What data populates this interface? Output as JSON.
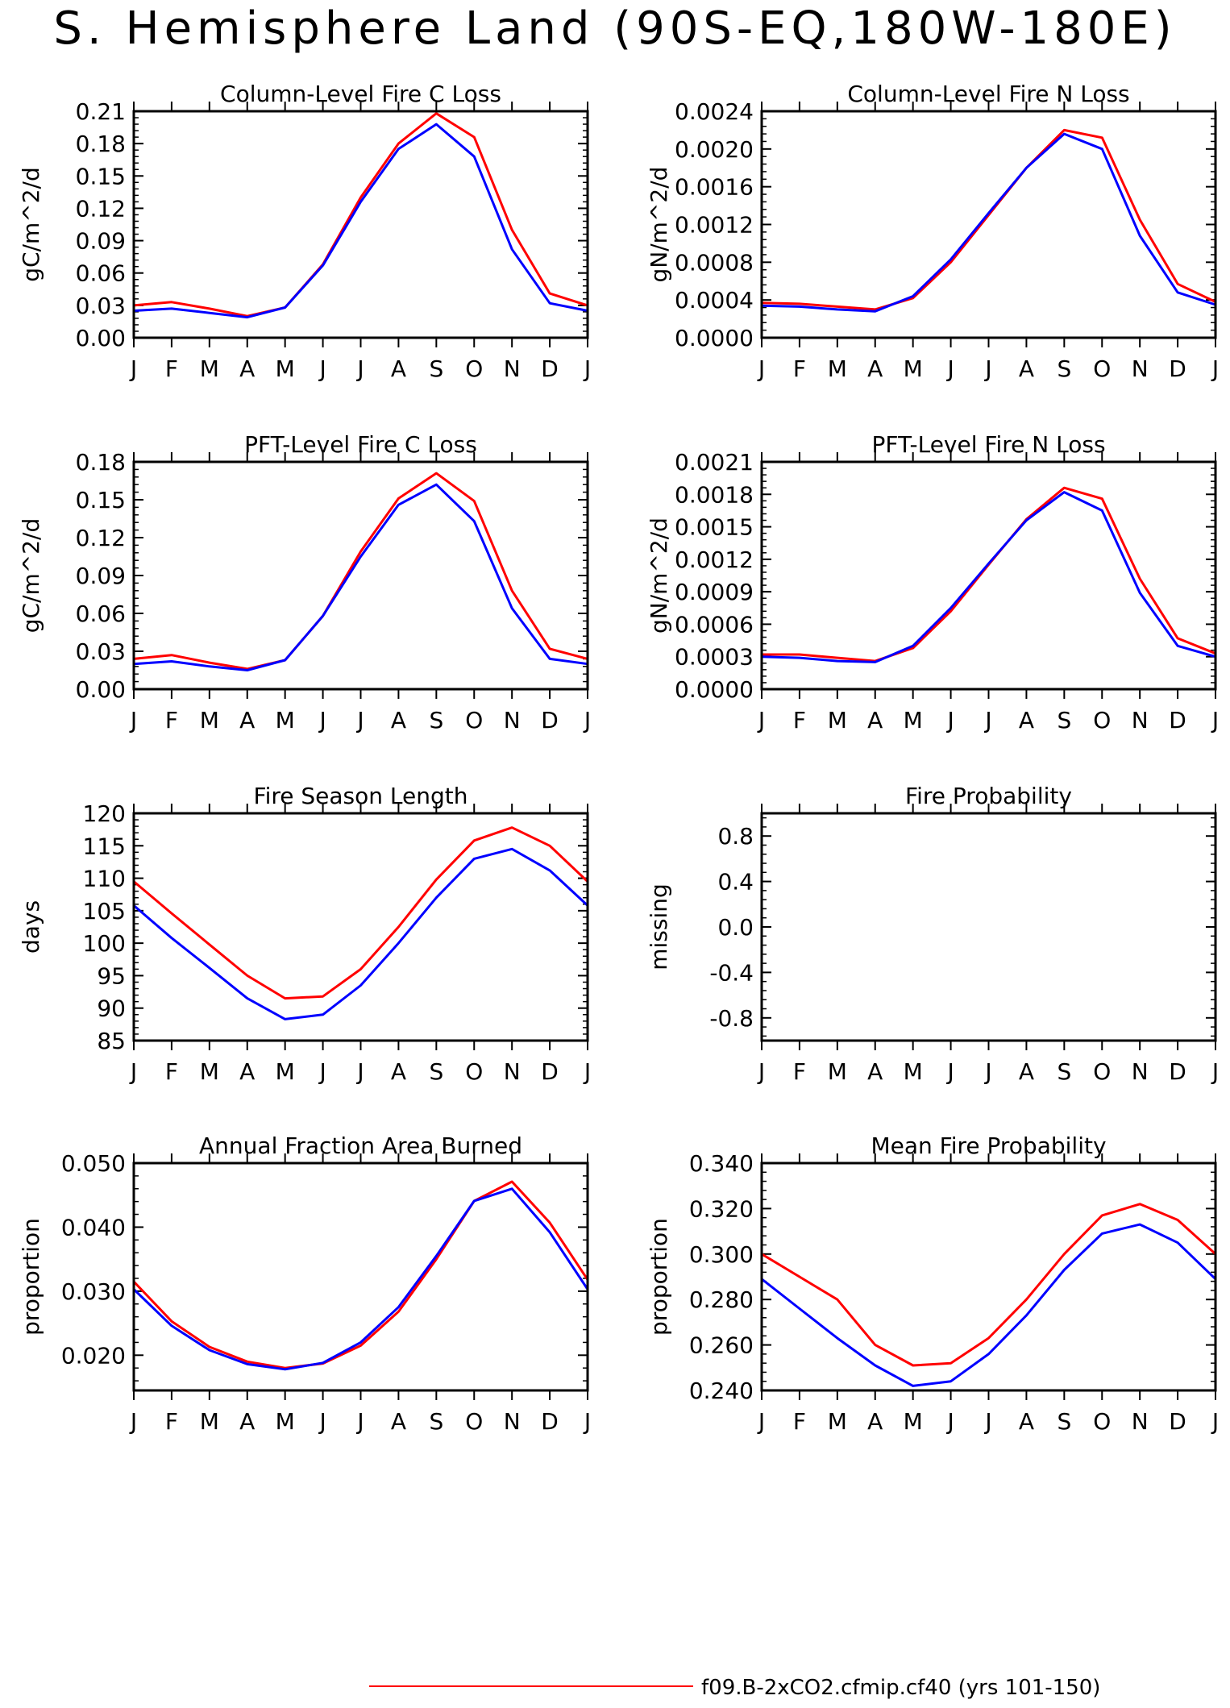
{
  "title": "S. Hemisphere Land (90S-EQ,180W-180E)",
  "months": [
    "J",
    "F",
    "M",
    "A",
    "M",
    "J",
    "J",
    "A",
    "S",
    "O",
    "N",
    "D",
    "J"
  ],
  "legend": {
    "entries": [
      {
        "label": "f09.B-2xCO2.cfmip.cf40 (yrs 101-150)",
        "color": "#ff0000"
      }
    ]
  },
  "chart_data": [
    {
      "type": "line",
      "title": "Column-Level Fire C Loss",
      "ylabel": "gC/m^2/d",
      "ylim": [
        0,
        0.21
      ],
      "yticks": [
        "0.00",
        "0.03",
        "0.06",
        "0.09",
        "0.12",
        "0.15",
        "0.18",
        "0.21"
      ],
      "series": [
        {
          "color": "#ff0000",
          "values": [
            0.03,
            0.033,
            0.027,
            0.02,
            0.028,
            0.068,
            0.13,
            0.18,
            0.208,
            0.186,
            0.1,
            0.041,
            0.03
          ]
        },
        {
          "color": "#0000ff",
          "values": [
            0.025,
            0.027,
            0.023,
            0.019,
            0.028,
            0.067,
            0.126,
            0.175,
            0.198,
            0.168,
            0.082,
            0.032,
            0.025
          ]
        }
      ]
    },
    {
      "type": "line",
      "title": "Column-Level Fire N Loss",
      "ylabel": "gN/m^2/d",
      "ylim": [
        0,
        0.0024
      ],
      "yticks": [
        "0.0000",
        "0.0004",
        "0.0008",
        "0.0012",
        "0.0016",
        "0.0020",
        "0.0024"
      ],
      "series": [
        {
          "color": "#ff0000",
          "values": [
            0.00037,
            0.00036,
            0.00033,
            0.0003,
            0.00042,
            0.0008,
            0.0013,
            0.0018,
            0.0022,
            0.00212,
            0.00125,
            0.00057,
            0.00038
          ]
        },
        {
          "color": "#0000ff",
          "values": [
            0.00034,
            0.00033,
            0.0003,
            0.00028,
            0.00044,
            0.00083,
            0.00132,
            0.0018,
            0.00216,
            0.002,
            0.00108,
            0.00048,
            0.00035
          ]
        }
      ]
    },
    {
      "type": "line",
      "title": "PFT-Level Fire C Loss",
      "ylabel": "gC/m^2/d",
      "ylim": [
        0,
        0.18
      ],
      "yticks": [
        "0.00",
        "0.03",
        "0.06",
        "0.09",
        "0.12",
        "0.15",
        "0.18"
      ],
      "series": [
        {
          "color": "#ff0000",
          "values": [
            0.024,
            0.027,
            0.021,
            0.016,
            0.023,
            0.058,
            0.109,
            0.151,
            0.171,
            0.149,
            0.078,
            0.032,
            0.024
          ]
        },
        {
          "color": "#0000ff",
          "values": [
            0.02,
            0.022,
            0.018,
            0.015,
            0.023,
            0.058,
            0.105,
            0.146,
            0.162,
            0.133,
            0.064,
            0.024,
            0.02
          ]
        }
      ]
    },
    {
      "type": "line",
      "title": "PFT-Level Fire N Loss",
      "ylabel": "gN/m^2/d",
      "ylim": [
        0,
        0.0021
      ],
      "yticks": [
        "0.0000",
        "0.0003",
        "0.0006",
        "0.0009",
        "0.0012",
        "0.0015",
        "0.0018",
        "0.0021"
      ],
      "series": [
        {
          "color": "#ff0000",
          "values": [
            0.00032,
            0.00032,
            0.00029,
            0.00026,
            0.00038,
            0.00072,
            0.00115,
            0.00157,
            0.00186,
            0.00176,
            0.00102,
            0.00047,
            0.00033
          ]
        },
        {
          "color": "#0000ff",
          "values": [
            0.0003,
            0.00029,
            0.00026,
            0.00025,
            0.0004,
            0.00075,
            0.00116,
            0.00156,
            0.00182,
            0.00165,
            0.00089,
            0.0004,
            0.0003
          ]
        }
      ]
    },
    {
      "type": "line",
      "title": "Fire Season Length",
      "ylabel": "days",
      "ylim": [
        85,
        120
      ],
      "yticks": [
        "85",
        "90",
        "95",
        "100",
        "105",
        "110",
        "115",
        "120"
      ],
      "series": [
        {
          "color": "#ff0000",
          "values": [
            109.5,
            104.6,
            99.8,
            95.0,
            91.5,
            91.8,
            96.0,
            102.5,
            109.8,
            115.8,
            117.8,
            115.0,
            109.5
          ]
        },
        {
          "color": "#0000ff",
          "values": [
            105.8,
            100.8,
            96.2,
            91.5,
            88.3,
            89.0,
            93.5,
            100.0,
            107.0,
            113.0,
            114.5,
            111.2,
            105.8
          ]
        }
      ]
    },
    {
      "type": "line",
      "title": "Fire Probability",
      "ylabel": "missing",
      "ylim": [
        -1,
        1
      ],
      "yticks": [
        "-0.8",
        "-0.4",
        "0.0",
        "0.4",
        "0.8"
      ],
      "ytick_values": [
        -0.8,
        -0.4,
        0.0,
        0.4,
        0.8
      ],
      "series": []
    },
    {
      "type": "line",
      "title": "Annual Fraction Area Burned",
      "ylabel": "proportion",
      "ylim": [
        0.0145,
        0.05
      ],
      "yticks": [
        "0.020",
        "0.030",
        "0.040",
        "0.050"
      ],
      "ytick_values": [
        0.02,
        0.03,
        0.04,
        0.05
      ],
      "series": [
        {
          "color": "#ff0000",
          "values": [
            0.0315,
            0.0253,
            0.0213,
            0.019,
            0.018,
            0.0187,
            0.0215,
            0.0268,
            0.035,
            0.0441,
            0.0471,
            0.0407,
            0.0318
          ]
        },
        {
          "color": "#0000ff",
          "values": [
            0.0303,
            0.0246,
            0.0208,
            0.0186,
            0.0178,
            0.0188,
            0.022,
            0.0275,
            0.0355,
            0.0441,
            0.046,
            0.0392,
            0.0303
          ]
        }
      ]
    },
    {
      "type": "line",
      "title": "Mean Fire Probability",
      "ylabel": "proportion",
      "ylim": [
        0.24,
        0.34
      ],
      "yticks": [
        "0.240",
        "0.260",
        "0.280",
        "0.300",
        "0.320",
        "0.340"
      ],
      "series": [
        {
          "color": "#ff0000",
          "values": [
            0.3,
            0.29,
            0.28,
            0.26,
            0.251,
            0.252,
            0.263,
            0.28,
            0.3,
            0.317,
            0.322,
            0.315,
            0.3
          ]
        },
        {
          "color": "#0000ff",
          "values": [
            0.289,
            0.276,
            0.263,
            0.251,
            0.242,
            0.244,
            0.256,
            0.273,
            0.293,
            0.309,
            0.313,
            0.305,
            0.289
          ]
        }
      ]
    }
  ]
}
